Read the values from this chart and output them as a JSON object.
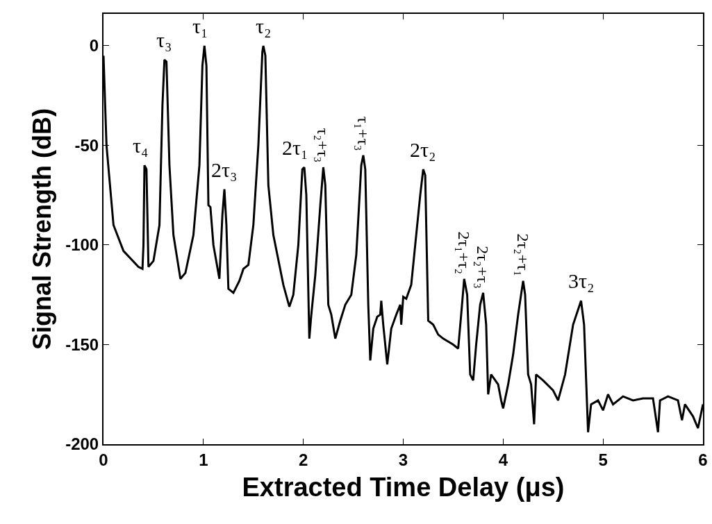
{
  "chart_data": {
    "type": "line",
    "xlabel": "Extracted Time Delay (μs)",
    "ylabel": "Signal Strength (dB)",
    "xlim": [
      0,
      6
    ],
    "xticks": [
      0,
      1,
      2,
      3,
      4,
      5,
      6
    ],
    "ylim": [
      -200,
      16
    ],
    "yticks": [
      -200,
      -150,
      -100,
      -50,
      0
    ],
    "grid": false,
    "marker": "none",
    "line_style": "solid",
    "x": [
      0,
      0.03,
      0.1,
      0.2,
      0.35,
      0.39,
      0.4,
      0.41,
      0.43,
      0.45,
      0.5,
      0.56,
      0.59,
      0.61,
      0.63,
      0.66,
      0.7,
      0.77,
      0.82,
      0.9,
      0.96,
      0.99,
      1.01,
      1.03,
      1.05,
      1.07,
      1.1,
      1.16,
      1.19,
      1.21,
      1.23,
      1.25,
      1.3,
      1.36,
      1.4,
      1.45,
      1.5,
      1.55,
      1.59,
      1.6,
      1.62,
      1.65,
      1.7,
      1.8,
      1.86,
      1.9,
      1.95,
      1.99,
      2.01,
      2.03,
      2.06,
      2.08,
      2.12,
      2.17,
      2.2,
      2.22,
      2.25,
      2.28,
      2.32,
      2.37,
      2.42,
      2.48,
      2.53,
      2.58,
      2.6,
      2.62,
      2.65,
      2.67,
      2.7,
      2.74,
      2.77,
      2.78,
      2.8,
      2.84,
      2.88,
      2.93,
      2.97,
      2.98,
      3.0,
      3.03,
      3.08,
      3.12,
      3.17,
      3.2,
      3.22,
      3.25,
      3.3,
      3.35,
      3.4,
      3.5,
      3.55,
      3.58,
      3.61,
      3.64,
      3.67,
      3.7,
      3.73,
      3.77,
      3.8,
      3.83,
      3.85,
      3.88,
      3.95,
      3.98,
      4.0,
      4.05,
      4.1,
      4.15,
      4.2,
      4.22,
      4.25,
      4.28,
      4.31,
      4.33,
      4.4,
      4.5,
      4.55,
      4.62,
      4.7,
      4.78,
      4.81,
      4.85,
      4.88,
      4.95,
      5.0,
      5.05,
      5.1,
      5.2,
      5.3,
      5.4,
      5.5,
      5.55,
      5.57,
      5.65,
      5.75,
      5.79,
      5.82,
      5.9,
      5.95,
      6.0
    ],
    "series": [
      {
        "color": "#000000",
        "values": [
          -5,
          -50,
          -90,
          -103,
          -111,
          -112,
          -100,
          -60,
          -62,
          -111,
          -108,
          -90,
          -30,
          -7,
          -8,
          -60,
          -95,
          -117,
          -114,
          -95,
          -60,
          -10,
          0,
          -10,
          -80,
          -81,
          -100,
          -117,
          -85,
          -72,
          -90,
          -122,
          -124,
          -118,
          -112,
          -110,
          -90,
          -50,
          -3,
          0,
          -5,
          -70,
          -95,
          -120,
          -131,
          -125,
          -100,
          -62,
          -61,
          -75,
          -147,
          -135,
          -115,
          -80,
          -61,
          -70,
          -130,
          -135,
          -147,
          -138,
          -130,
          -125,
          -105,
          -60,
          -55,
          -62,
          -130,
          -158,
          -142,
          -136,
          -135,
          -128,
          -140,
          -160,
          -142,
          -135,
          -130,
          -140,
          -126,
          -127,
          -120,
          -100,
          -75,
          -62,
          -65,
          -138,
          -140,
          -145,
          -147,
          -150,
          -152,
          -135,
          -117,
          -125,
          -165,
          -168,
          -150,
          -130,
          -124,
          -140,
          -175,
          -165,
          -170,
          -178,
          -182,
          -170,
          -155,
          -135,
          -118,
          -125,
          -165,
          -170,
          -190,
          -165,
          -168,
          -173,
          -178,
          -165,
          -140,
          -128,
          -140,
          -194,
          -180,
          -178,
          -183,
          -175,
          -180,
          -176,
          -178,
          -177,
          -177,
          -194,
          -178,
          -176,
          -178,
          -188,
          -180,
          -186,
          -192,
          -180
        ]
      }
    ],
    "annotations": [
      {
        "text": "τ₄",
        "x": 0.41,
        "y": -60
      },
      {
        "text": "τ₃",
        "x": 0.61,
        "y": -7
      },
      {
        "text": "τ₁",
        "x": 1.01,
        "y": 0
      },
      {
        "text": "2τ₃",
        "x": 1.21,
        "y": -72
      },
      {
        "text": "τ₂",
        "x": 1.6,
        "y": 0
      },
      {
        "text": "2τ₁",
        "x": 2.01,
        "y": -61
      },
      {
        "text": "τ₂+τ₃",
        "x": 2.2,
        "y": -61
      },
      {
        "text": "τ₁+τ₃",
        "x": 2.6,
        "y": -55
      },
      {
        "text": "2τ₂",
        "x": 3.2,
        "y": -62
      },
      {
        "text": "2τ₁+τ₂",
        "x": 3.61,
        "y": -117
      },
      {
        "text": "2τ₂+τ₃",
        "x": 3.8,
        "y": -124
      },
      {
        "text": "2τ₂+τ₁",
        "x": 4.2,
        "y": -118
      },
      {
        "text": "3τ₂",
        "x": 4.78,
        "y": -128
      }
    ]
  }
}
